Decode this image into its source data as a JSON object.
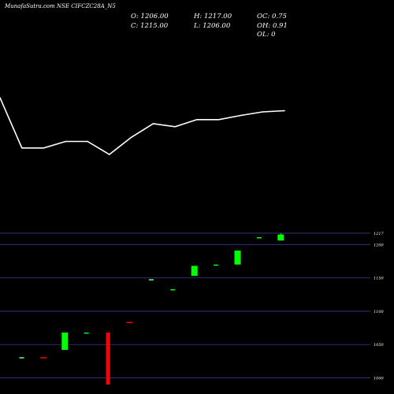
{
  "header": {
    "title": "MunafaSutra.com NSE CIFCZC28A_N5",
    "o_text": "O: 1206.00",
    "h_text": "H: 1217.00",
    "oc_text": "OC: 0.75",
    "c_text": "C: 1215.00",
    "l_text": "L: 1206.00",
    "oh_text": "OH: 0.91",
    "ol_text": "OL: 0"
  },
  "colors": {
    "background": "#000000",
    "up": "#00ff00",
    "down": "#ff0000",
    "line": "#ffffff",
    "grid": "#3a3a8a"
  },
  "chart_data": [
    {
      "type": "line",
      "title": "",
      "series": [
        {
          "values": [
            1250,
            1165,
            1165,
            1176,
            1176,
            1154,
            1183,
            1206,
            1201,
            1213,
            1213,
            1220,
            1226,
            1228
          ]
        }
      ]
    },
    {
      "type": "candlestick",
      "ylim": [
        990,
        1224
      ],
      "yticks": [
        1000,
        1050,
        1100,
        1150,
        1200,
        1217
      ],
      "candles": [
        {
          "open": 1031,
          "high": 1031,
          "low": 1031,
          "close": 1031,
          "dir": "flat"
        },
        {
          "open": 1031,
          "high": 1031,
          "low": 1031,
          "close": 1031,
          "dir": "down"
        },
        {
          "open": 1042,
          "high": 1068,
          "low": 1042,
          "close": 1068,
          "dir": "up"
        },
        {
          "open": 1068,
          "high": 1068,
          "low": 1068,
          "close": 1068,
          "dir": "flat"
        },
        {
          "open": 1068,
          "high": 1068,
          "low": 990,
          "close": 990,
          "dir": "down"
        },
        {
          "open": 1084,
          "high": 1084,
          "low": 1084,
          "close": 1084,
          "dir": "down"
        },
        {
          "open": 1148,
          "high": 1148,
          "low": 1148,
          "close": 1148,
          "dir": "flat"
        },
        {
          "open": 1133,
          "high": 1133,
          "low": 1133,
          "close": 1133,
          "dir": "flat"
        },
        {
          "open": 1153,
          "high": 1168,
          "low": 1153,
          "close": 1168,
          "dir": "up"
        },
        {
          "open": 1170,
          "high": 1170,
          "low": 1170,
          "close": 1170,
          "dir": "flat"
        },
        {
          "open": 1170,
          "high": 1191,
          "low": 1170,
          "close": 1191,
          "dir": "up"
        },
        {
          "open": 1211,
          "high": 1211,
          "low": 1211,
          "close": 1211,
          "dir": "flat"
        },
        {
          "open": 1206,
          "high": 1217,
          "low": 1206,
          "close": 1215,
          "dir": "up"
        }
      ]
    }
  ]
}
